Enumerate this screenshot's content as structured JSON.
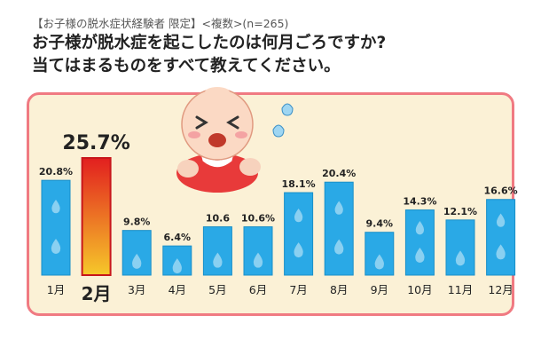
{
  "header": {
    "subtitle": "【お子様の脱水症状経験者 限定】<複数>(n=265)",
    "question_line1": "お子様が脱水症を起こしたのは何月ごろですか?",
    "question_line2": "当てはまるものをすべて教えてください。"
  },
  "colors": {
    "bar": "#2aa9e6",
    "highlight_bar_top": "#e21f1f",
    "highlight_bar_bottom": "#f6c82a",
    "panel_bg": "#fbf1d6",
    "panel_border": "#f07a82"
  },
  "illustration": "crying-baby-icon",
  "chart_data": {
    "type": "bar",
    "categories": [
      "1月",
      "2月",
      "3月",
      "4月",
      "5月",
      "6月",
      "7月",
      "8月",
      "9月",
      "10月",
      "11月",
      "12月"
    ],
    "values": [
      20.8,
      25.7,
      9.8,
      6.4,
      10.6,
      10.6,
      18.1,
      20.4,
      9.4,
      14.3,
      12.1,
      16.6
    ],
    "value_labels": [
      "20.8%",
      "25.7%",
      "9.8%",
      "6.4%",
      "10.6",
      "10.6%",
      "18.1%",
      "20.4%",
      "9.4%",
      "14.3%",
      "12.1%",
      "16.6%"
    ],
    "highlight_index": 1,
    "unit": "%",
    "ylim": [
      0,
      25.7
    ]
  }
}
